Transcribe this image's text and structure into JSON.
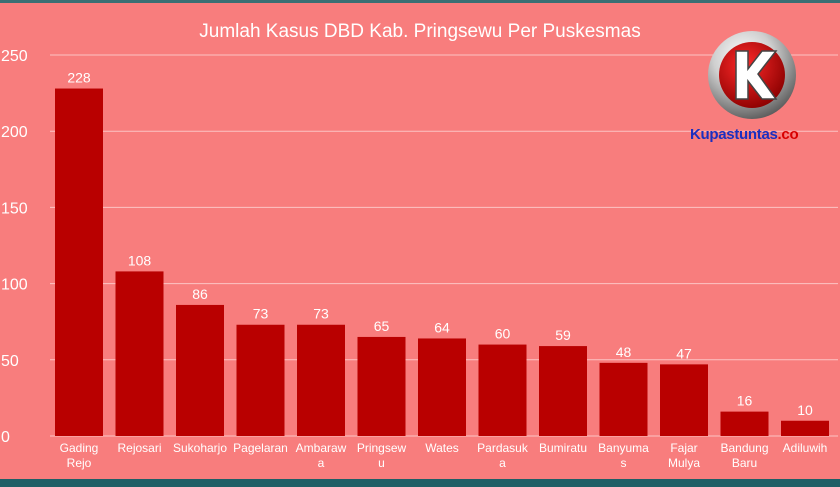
{
  "chart_data": {
    "type": "bar",
    "title": "Jumlah Kasus DBD Kab. Pringsewu Per Puskesmas",
    "xlabel": "",
    "ylabel": "",
    "ylim": [
      0,
      250
    ],
    "yticks": [
      0,
      50,
      100,
      150,
      200,
      250
    ],
    "grid": true,
    "bar_color": "#b90000",
    "categories": [
      [
        "Gading",
        "Rejo"
      ],
      [
        "Rejosari"
      ],
      [
        "Sukoharjo"
      ],
      [
        "Pagelaran"
      ],
      [
        "Ambaraw",
        "a"
      ],
      [
        "Pringsew",
        "u"
      ],
      [
        "Wates"
      ],
      [
        "Pardasuk",
        "a"
      ],
      [
        "Bumiratu"
      ],
      [
        "Banyuma",
        "s"
      ],
      [
        "Fajar",
        "Mulya"
      ],
      [
        "Bandung",
        "Baru"
      ],
      [
        "Adiluwih"
      ]
    ],
    "values": [
      228,
      108,
      86,
      73,
      73,
      65,
      64,
      60,
      59,
      48,
      47,
      16,
      10
    ]
  },
  "watermark": {
    "logo_letter": "K",
    "text_main": "Kupastuntas",
    "text_dot": ".",
    "text_tld": "co",
    "colors": {
      "main": "#1a2fc0",
      "accent": "#d80000"
    }
  }
}
